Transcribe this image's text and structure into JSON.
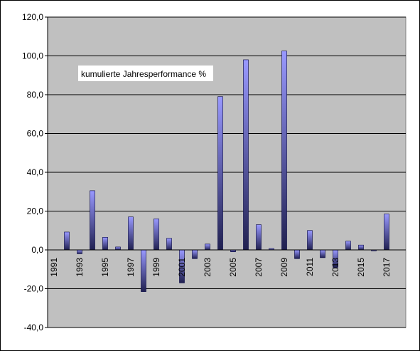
{
  "chart_data": {
    "type": "bar",
    "annotation": "kumulierte Jahresperformance %",
    "categories": [
      "1991",
      null,
      "1993",
      null,
      "1995",
      null,
      "1997",
      null,
      "1999",
      null,
      "2001",
      null,
      "2003",
      null,
      "2005",
      null,
      "2007",
      null,
      "2009",
      null,
      "2011",
      null,
      "2013",
      null,
      "2015",
      null,
      "2017",
      null
    ],
    "values": [
      null,
      9.2,
      -2,
      30.5,
      6.5,
      1.5,
      17,
      -21.5,
      16,
      6,
      -17,
      -4.5,
      3,
      79,
      -1,
      98,
      13,
      0.7,
      102.5,
      -4.5,
      10,
      -4,
      -9,
      4.5,
      2.5,
      -0.5,
      18.5,
      null
    ],
    "color": "#9999ff",
    "ylim": [
      -40,
      120
    ],
    "yticks": [
      {
        "value": -40,
        "label": "-40,0"
      },
      {
        "value": -20,
        "label": "-20,0"
      },
      {
        "value": 0,
        "label": "0,0"
      },
      {
        "value": 20,
        "label": "20,0"
      },
      {
        "value": 40,
        "label": "40,0"
      },
      {
        "value": 60,
        "label": "60,0"
      },
      {
        "value": 80,
        "label": "80,0"
      },
      {
        "value": 100,
        "label": "100,0"
      },
      {
        "value": 120,
        "label": "120,0"
      }
    ],
    "grid": true
  }
}
